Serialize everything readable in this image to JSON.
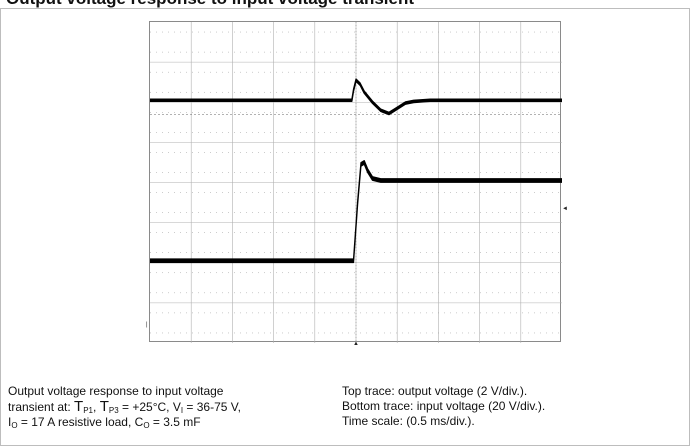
{
  "page": {
    "header_text": "Output voltage response to input voltage transient"
  },
  "chart_data": {
    "type": "line",
    "title": "",
    "xlabel": "",
    "ylabel": "",
    "grid": true,
    "x_divisions": 10,
    "y_divisions": 8,
    "xlim": [
      0,
      5
    ],
    "x_unit": "ms",
    "series": [
      {
        "name": "Top trace: output voltage",
        "scale": "2 V/div.",
        "x": [
          0,
          2.45,
          2.47,
          2.5,
          2.55,
          2.6,
          2.7,
          2.8,
          2.9,
          3.0,
          3.1,
          3.2,
          3.4,
          3.7,
          4.2,
          5.0
        ],
        "y_div": [
          6.05,
          6.05,
          6.3,
          6.55,
          6.45,
          6.25,
          6.0,
          5.8,
          5.72,
          5.85,
          5.98,
          6.02,
          6.05,
          6.05,
          6.05,
          6.05
        ],
        "band_div": 0.06
      },
      {
        "name": "Bottom trace: input voltage",
        "scale": "20 V/div.",
        "x": [
          0,
          2.47,
          2.52,
          2.56,
          2.6,
          2.64,
          2.7,
          2.8,
          3.0,
          3.3,
          5.0
        ],
        "y_div": [
          2.05,
          2.05,
          3.5,
          4.45,
          4.5,
          4.3,
          4.1,
          4.05,
          4.05,
          4.05,
          4.05
        ],
        "band_div": 0.09
      }
    ]
  },
  "caption_left": {
    "line1": "Output voltage response to input voltage",
    "line2_prefix": "transient at: ",
    "t": "T",
    "p1": "P1",
    "sep": ", ",
    "p3": "P3",
    "line2_temp": " = +25°C, V",
    "i_sub": "I",
    "line2_vin": " = 36-75 V,",
    "io": "I",
    "o_sub": "O",
    "line3_load": " = 17 A resistive load, C",
    "co_sub": "O",
    "line3_cap": " = 3.5 mF"
  },
  "caption_right": {
    "line1": "Top trace: output voltage (2 V/div.).",
    "line2": "Bottom trace: input voltage (20 V/div.).",
    "line3": "Time scale: (0.5 ms/div.)."
  },
  "colors": {
    "trace": "#000000",
    "grid": "#b0b0b0",
    "minor_dots": "#9a9a9a"
  }
}
